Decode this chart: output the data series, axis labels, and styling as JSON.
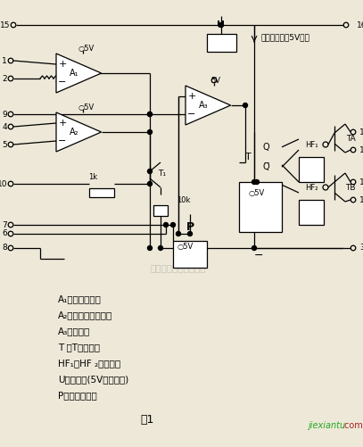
{
  "bg_color": "#ede8d8",
  "line_color": "#000000",
  "figure_label": "图1",
  "watermark": "杭州精睿科技有限公司",
  "top_label": "提供所有内部5V电源",
  "legend_lines": [
    "A₁：误差放大器",
    "A₂：电源限制放大器",
    "A₃：比较器",
    "T ：T型触发器",
    "HF₁、HF ₂：或非门",
    "U：电压源(5V基准电压)",
    "P：斜波发生器"
  ]
}
